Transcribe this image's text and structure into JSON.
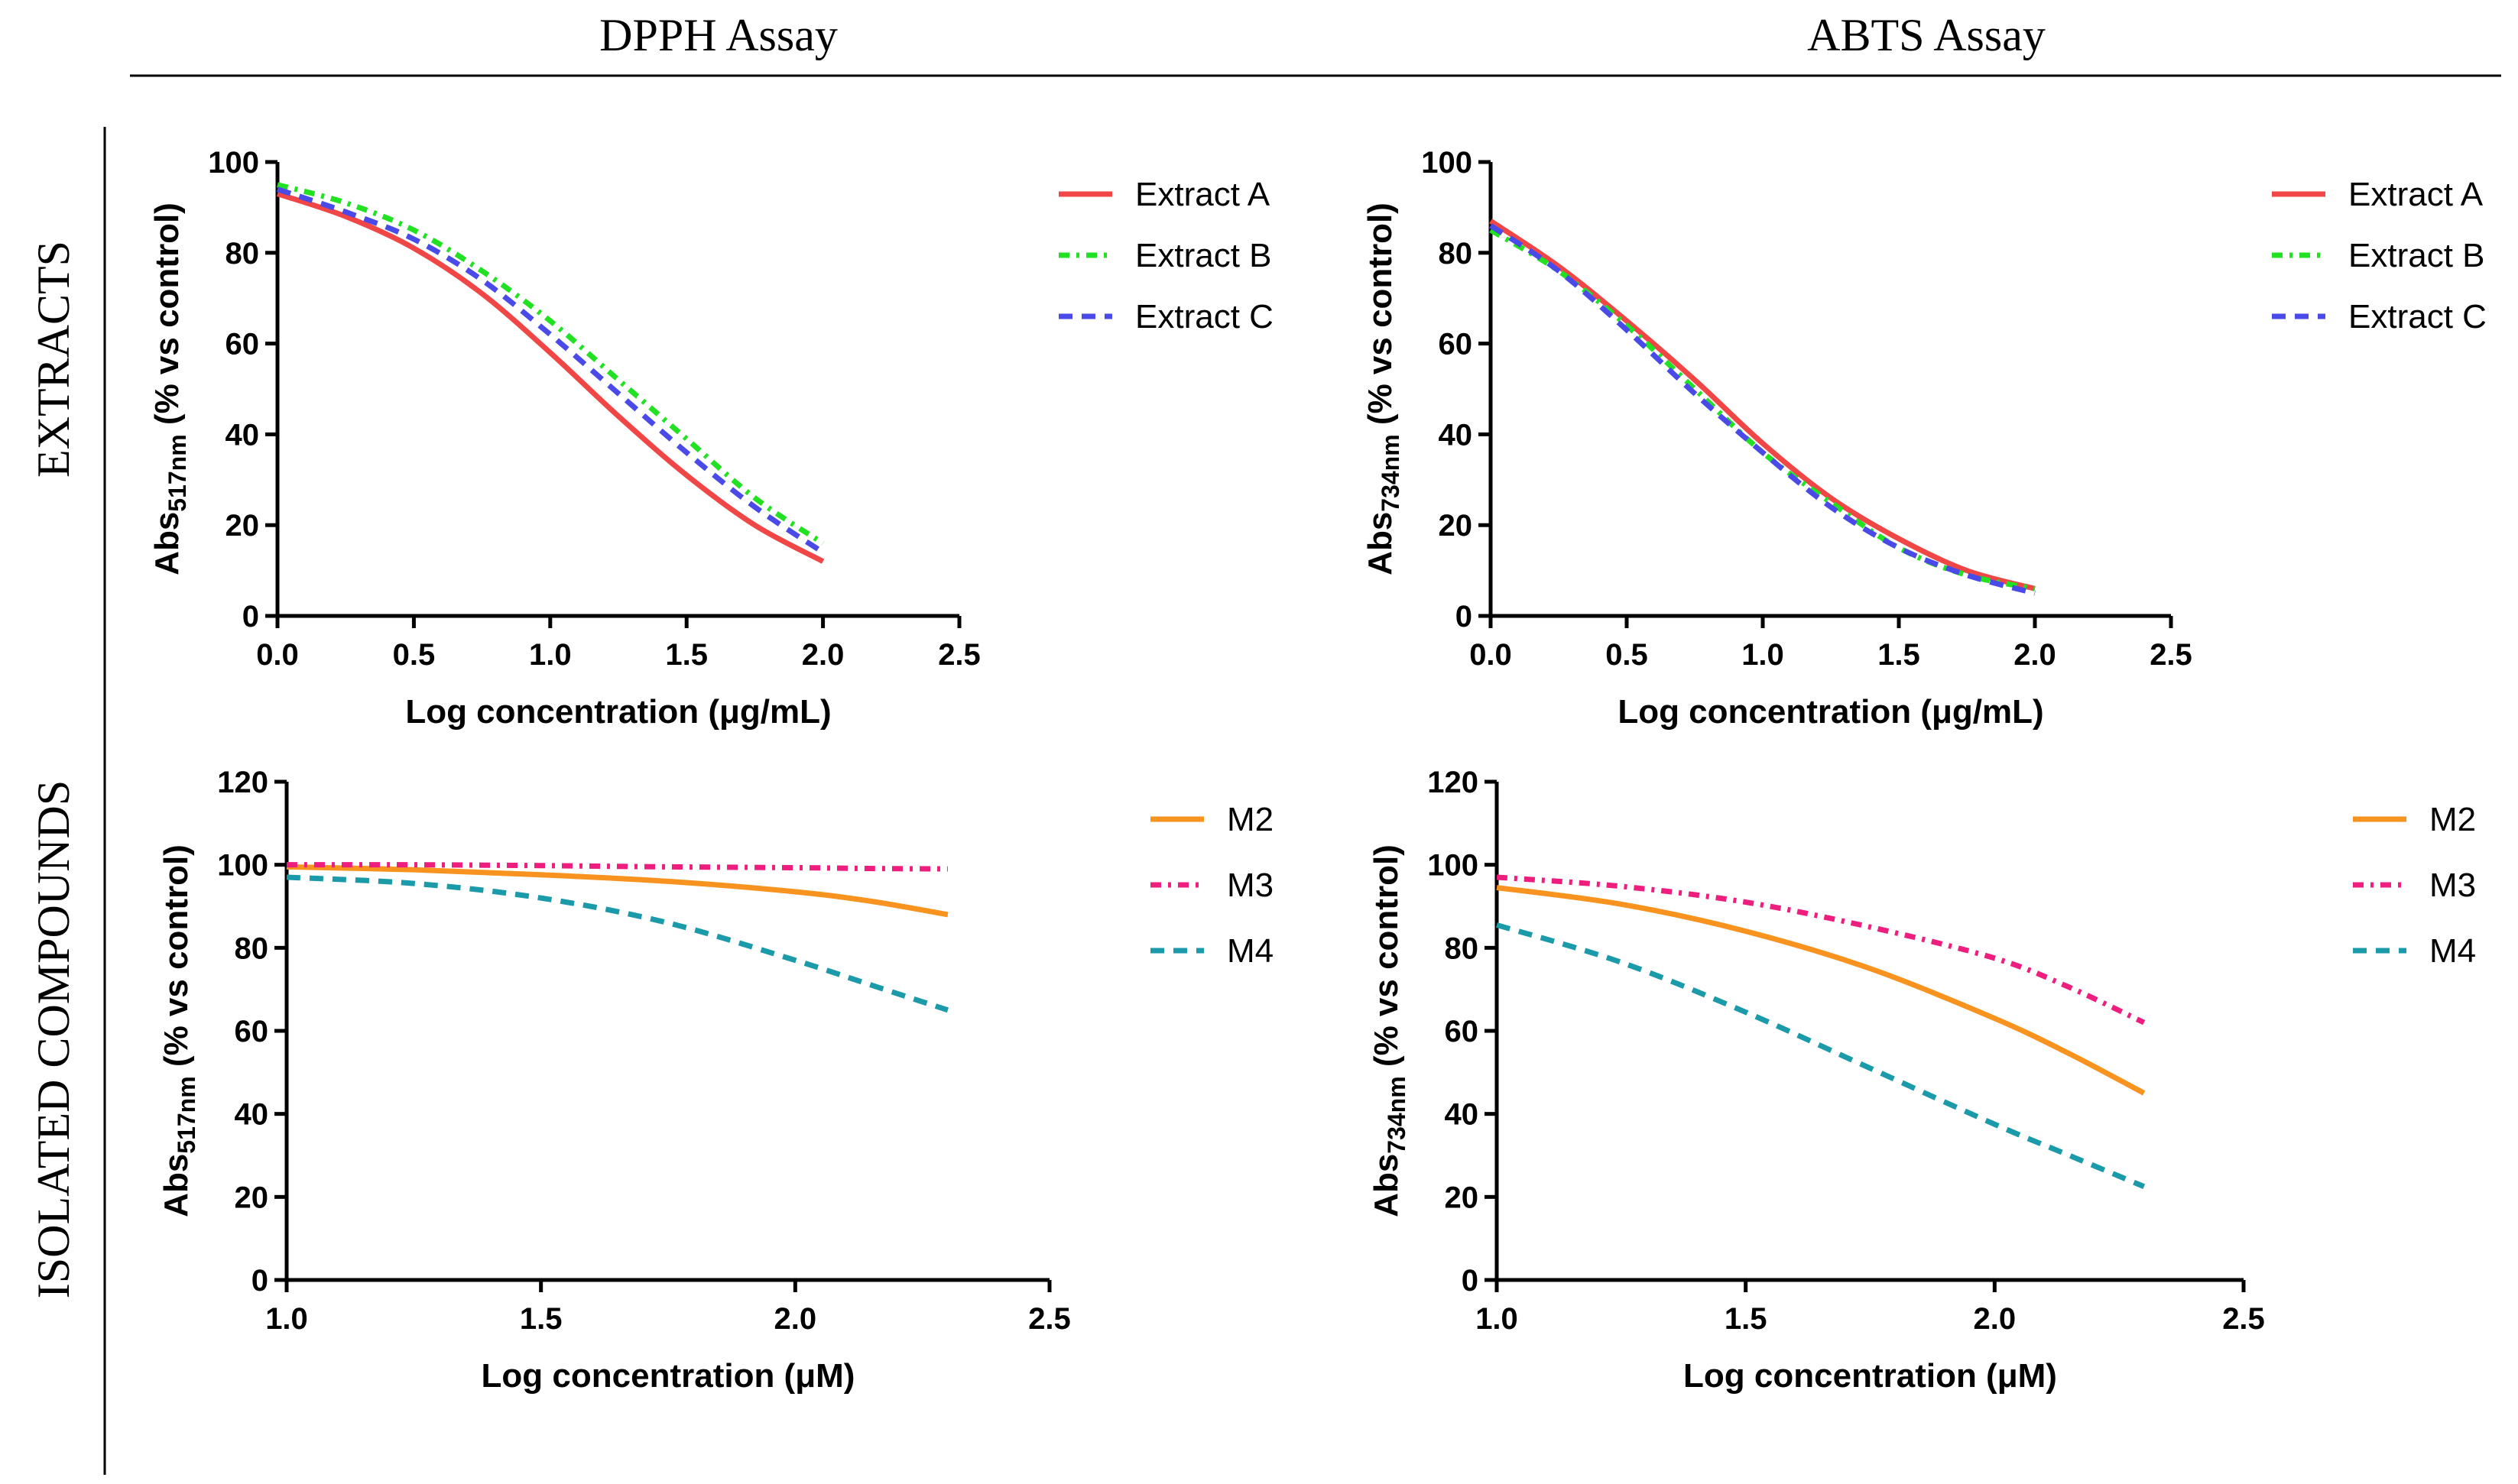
{
  "layout_titles": {
    "columns": [
      "DPPH Assay",
      "ABTS Assay"
    ],
    "rows": [
      "EXTRACTS",
      "ISOLATED COMPOUNDS"
    ]
  },
  "chart_data": [
    {
      "id": "dpph-extracts",
      "type": "line",
      "xlabel": "Log concentration (μg/mL)",
      "ylabel_main": "Abs",
      "ylabel_sub": "517nm",
      "ylabel_rest": " (% vs control)",
      "xlim": [
        0,
        2.5
      ],
      "ylim": [
        0,
        100
      ],
      "xticks": [
        0,
        0.5,
        1,
        1.5,
        2,
        2.5
      ],
      "xtick_labels": [
        "0.0",
        "0.5",
        "1.0",
        "1.5",
        "2.0",
        "2.5"
      ],
      "yticks": [
        0,
        20,
        40,
        60,
        80,
        100
      ],
      "ytick_labels": [
        "0",
        "20",
        "40",
        "60",
        "80",
        "100"
      ],
      "x": [
        0,
        0.25,
        0.5,
        0.75,
        1,
        1.25,
        1.5,
        1.75,
        2
      ],
      "series": [
        {
          "name": "Extract A",
          "color": "#f04646",
          "dash": "",
          "values": [
            93,
            88,
            81,
            71,
            58,
            44,
            31,
            20,
            12
          ]
        },
        {
          "name": "Extract B",
          "color": "#22e022",
          "dash": "14 9 4 9",
          "values": [
            95,
            91,
            85,
            76,
            65,
            52,
            39,
            26,
            16
          ]
        },
        {
          "name": "Extract C",
          "color": "#4a4ae8",
          "dash": "18 12",
          "values": [
            94,
            89,
            83,
            74,
            62,
            49,
            36,
            24,
            14
          ]
        }
      ]
    },
    {
      "id": "abts-extracts",
      "type": "line",
      "xlabel": "Log concentration (μg/mL)",
      "ylabel_main": "Abs",
      "ylabel_sub": "734nm",
      "ylabel_rest": " (% vs control)",
      "xlim": [
        0,
        2.5
      ],
      "ylim": [
        0,
        100
      ],
      "xticks": [
        0,
        0.5,
        1,
        1.5,
        2,
        2.5
      ],
      "xtick_labels": [
        "0.0",
        "0.5",
        "1.0",
        "1.5",
        "2.0",
        "2.5"
      ],
      "yticks": [
        0,
        20,
        40,
        60,
        80,
        100
      ],
      "ytick_labels": [
        "0",
        "20",
        "40",
        "60",
        "80",
        "100"
      ],
      "x": [
        0,
        0.25,
        0.5,
        0.75,
        1,
        1.25,
        1.5,
        1.75,
        2
      ],
      "series": [
        {
          "name": "Extract A",
          "color": "#f04646",
          "dash": "",
          "values": [
            87,
            77,
            65,
            52,
            38,
            26,
            17,
            10,
            6
          ]
        },
        {
          "name": "Extract B",
          "color": "#22e022",
          "dash": "14 9 4 9",
          "values": [
            85,
            76,
            64,
            50,
            36,
            25,
            15,
            9,
            6
          ]
        },
        {
          "name": "Extract C",
          "color": "#4a4ae8",
          "dash": "18 12",
          "values": [
            86,
            76,
            63,
            49,
            36,
            24,
            15,
            9,
            5
          ]
        }
      ]
    },
    {
      "id": "dpph-compounds",
      "type": "line",
      "xlabel": "Log concentration (μM)",
      "ylabel_main": "Abs",
      "ylabel_sub": "517nm",
      "ylabel_rest": " (% vs control)",
      "xlim": [
        1,
        2.5
      ],
      "ylim": [
        0,
        120
      ],
      "xticks": [
        1,
        1.5,
        2,
        2.5
      ],
      "xtick_labels": [
        "1.0",
        "1.5",
        "2.0",
        "2.5"
      ],
      "yticks": [
        0,
        20,
        40,
        60,
        80,
        100,
        120
      ],
      "ytick_labels": [
        "0",
        "20",
        "40",
        "60",
        "80",
        "100",
        "120"
      ],
      "x": [
        1,
        1.25,
        1.5,
        1.75,
        2,
        2.15,
        2.3
      ],
      "series": [
        {
          "name": "M2",
          "color": "#f7931e",
          "dash": "",
          "values": [
            99.5,
            98.8,
            97.6,
            96,
            93.5,
            91.2,
            88
          ]
        },
        {
          "name": "M3",
          "color": "#ee1e7e",
          "dash": "14 9 4 9",
          "values": [
            100,
            100,
            99.8,
            99.5,
            99.3,
            99.1,
            99
          ]
        },
        {
          "name": "M4",
          "color": "#1b9aaa",
          "dash": "18 12",
          "values": [
            97,
            95.5,
            92,
            86,
            77,
            71,
            65
          ]
        }
      ]
    },
    {
      "id": "abts-compounds",
      "type": "line",
      "xlabel": "Log concentration (μM)",
      "ylabel_main": "Abs",
      "ylabel_sub": "734nm",
      "ylabel_rest": " (% vs control)",
      "xlim": [
        1,
        2.5
      ],
      "ylim": [
        0,
        120
      ],
      "xticks": [
        1,
        1.5,
        2,
        2.5
      ],
      "xtick_labels": [
        "1.0",
        "1.5",
        "2.0",
        "2.5"
      ],
      "yticks": [
        0,
        20,
        40,
        60,
        80,
        100,
        120
      ],
      "ytick_labels": [
        "0",
        "20",
        "40",
        "60",
        "80",
        "100",
        "120"
      ],
      "x": [
        1,
        1.25,
        1.5,
        1.75,
        2,
        2.15,
        2.3
      ],
      "series": [
        {
          "name": "M2",
          "color": "#f7931e",
          "dash": "",
          "values": [
            94.5,
            90.5,
            84,
            75,
            63,
            54.5,
            45
          ]
        },
        {
          "name": "M3",
          "color": "#ee1e7e",
          "dash": "14 9 4 9",
          "values": [
            97,
            94.8,
            91,
            85,
            77.5,
            70.5,
            62
          ]
        },
        {
          "name": "M4",
          "color": "#1b9aaa",
          "dash": "18 12",
          "values": [
            85.5,
            76.5,
            64.5,
            51,
            37.5,
            30,
            22.5
          ]
        }
      ]
    }
  ]
}
